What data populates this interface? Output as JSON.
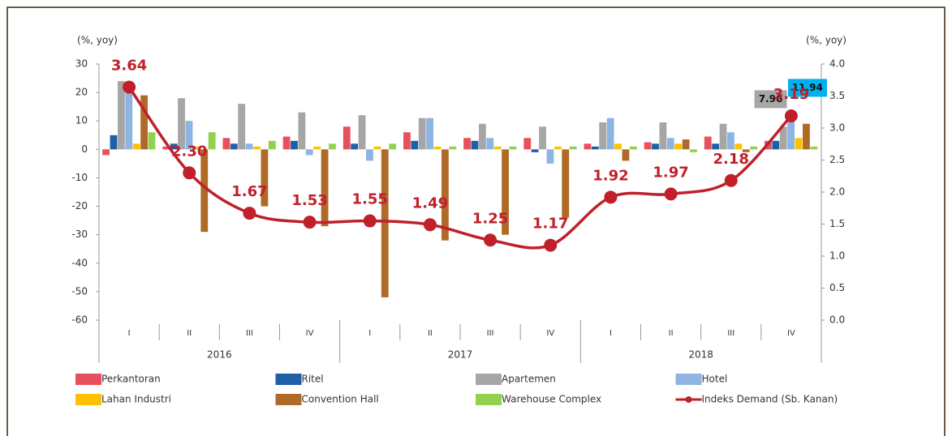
{
  "chart_data": {
    "type": "bar",
    "categories": [
      "I",
      "II",
      "III",
      "IV",
      "I",
      "II",
      "III",
      "IV",
      "I",
      "II",
      "III",
      "IV"
    ],
    "groups": [
      "2016",
      "2017",
      "2018"
    ],
    "y_label": "(%, yoy)",
    "y2_label": "(%, yoy)",
    "ylim": [
      -60,
      30
    ],
    "yticks": [
      -60,
      -50,
      -40,
      -30,
      -20,
      -10,
      0,
      10,
      20,
      30
    ],
    "y2lim": [
      0,
      4
    ],
    "y2ticks": [
      {
        "value": 0,
        "label": "0.0"
      },
      {
        "value": 0.5,
        "label": "0.5"
      },
      {
        "value": 1,
        "label": "1.0"
      },
      {
        "value": 1.5,
        "label": "1.5"
      },
      {
        "value": 2,
        "label": "2.0"
      },
      {
        "value": 2.5,
        "label": "2.5"
      },
      {
        "value": 3,
        "label": "3.0"
      },
      {
        "value": 3.5,
        "label": "3.5"
      },
      {
        "value": 4,
        "label": "4.0"
      }
    ],
    "series": [
      {
        "name": "Perkantoran",
        "color": "#e8505b",
        "values": [
          -2,
          1,
          4,
          4.5,
          8,
          6,
          4,
          4,
          2,
          2.5,
          4.5,
          3
        ]
      },
      {
        "name": "Ritel",
        "color": "#1f5fa6",
        "values": [
          5,
          2,
          2,
          3,
          2,
          3,
          3,
          -1,
          1,
          2,
          2,
          3
        ]
      },
      {
        "name": "Apartemen",
        "color": "#a6a6a6",
        "values": [
          24,
          18,
          16,
          13,
          12,
          11,
          9,
          8,
          9.5,
          9.5,
          9,
          7.96
        ],
        "value_labels": [
          null,
          null,
          null,
          null,
          null,
          null,
          null,
          null,
          null,
          null,
          null,
          "7.96"
        ]
      },
      {
        "name": "Hotel",
        "color": "#8db4e2",
        "values": [
          22,
          10,
          2,
          -2,
          -4,
          11,
          4,
          -5,
          11,
          4,
          6,
          11.94
        ],
        "value_labels": [
          null,
          null,
          null,
          null,
          null,
          null,
          null,
          null,
          null,
          null,
          null,
          "11.94"
        ]
      },
      {
        "name": "Lahan Industri",
        "color": "#ffc000",
        "values": [
          2,
          1,
          1,
          1,
          1,
          1,
          1,
          1,
          2,
          2,
          2,
          4
        ]
      },
      {
        "name": "Convention Hall",
        "color": "#b06a28",
        "values": [
          19,
          -29,
          -20,
          -27,
          -52,
          -32,
          -30,
          -24,
          -4,
          3.5,
          -1,
          9
        ]
      },
      {
        "name": "Warehouse Complex",
        "color": "#92d050",
        "values": [
          6,
          6,
          3,
          2,
          2,
          1,
          1,
          1,
          1,
          -1,
          1,
          1
        ]
      },
      {
        "name": "Indeks Demand (Sb. Kanan)",
        "color": "#c0202a",
        "type": "line",
        "axis": "y2",
        "values": [
          3.64,
          2.3,
          1.67,
          1.53,
          1.55,
          1.49,
          1.25,
          1.17,
          1.92,
          1.97,
          2.18,
          3.19
        ],
        "value_labels": [
          "3.64",
          "2.30",
          "1.67",
          "1.53",
          "1.55",
          "1.49",
          "1.25",
          "1.17",
          "1.92",
          "1.97",
          "2.18",
          "3.19"
        ]
      }
    ]
  }
}
